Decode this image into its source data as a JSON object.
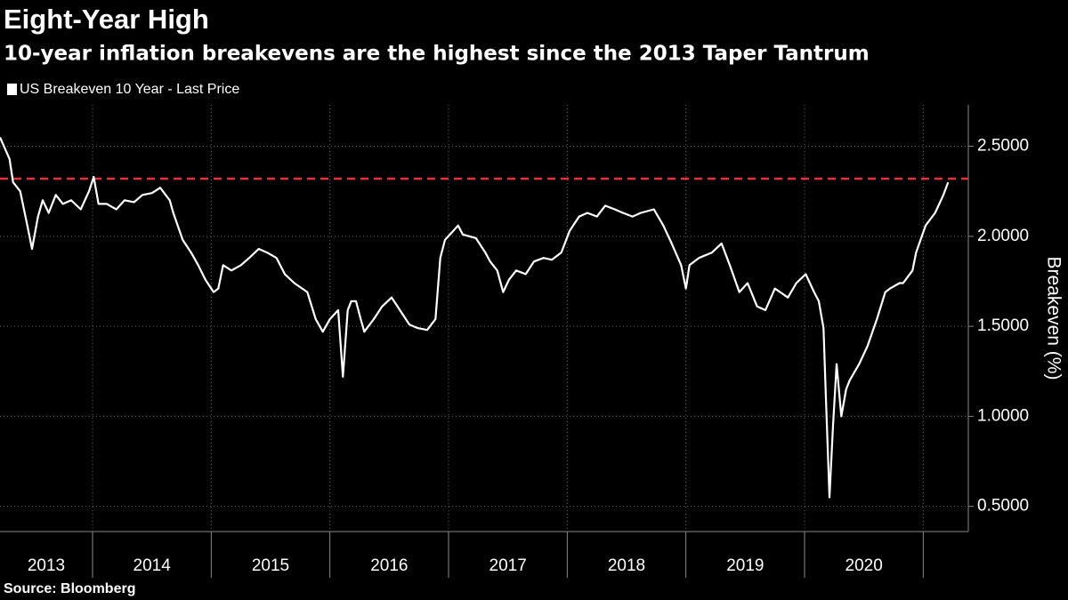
{
  "chart_data": {
    "type": "line",
    "title": "Eight-Year High",
    "subtitle": "10-year inflation breakevens are the highest since the 2013 Taper Tantrum",
    "y_label": "Breakeven (%)",
    "source": "Source: Bloomberg",
    "x_labels": [
      "2013",
      "2014",
      "2015",
      "2016",
      "2017",
      "2018",
      "2019",
      "2020"
    ],
    "xlim": [
      2013.22,
      2021.38
    ],
    "xticks": [
      2014,
      2015,
      2016,
      2017,
      2018,
      2019,
      2020,
      2021
    ],
    "ylim": [
      0.36,
      2.73
    ],
    "yticks": [
      {
        "value": 0.5,
        "label": "0.5000"
      },
      {
        "value": 1,
        "label": "1.0000"
      },
      {
        "value": 1.5,
        "label": "1.5000"
      },
      {
        "value": 2,
        "label": "2.0000"
      },
      {
        "value": 2.5,
        "label": "2.5000"
      }
    ],
    "grid": true,
    "reference_line": {
      "value": 2.32,
      "color": "#e8313f"
    },
    "x": [
      2013.22,
      2013.3,
      2013.33,
      2013.39,
      2013.45,
      2013.49,
      2013.54,
      2013.58,
      2013.63,
      2013.69,
      2013.75,
      2013.82,
      2013.9,
      2013.97,
      2014.01,
      2014.05,
      2014.12,
      2014.2,
      2014.27,
      2014.35,
      2014.42,
      2014.5,
      2014.57,
      2014.65,
      2014.68,
      2014.76,
      2014.83,
      2014.89,
      2014.95,
      2015.02,
      2015.06,
      2015.1,
      2015.17,
      2015.25,
      2015.32,
      2015.4,
      2015.47,
      2015.55,
      2015.62,
      2015.7,
      2015.81,
      2015.88,
      2015.94,
      2016.0,
      2016.07,
      2016.11,
      2016.15,
      2016.18,
      2016.22,
      2016.26,
      2016.29,
      2016.37,
      2016.44,
      2016.52,
      2016.59,
      2016.67,
      2016.74,
      2016.82,
      2016.89,
      2016.93,
      2016.97,
      2017.04,
      2017.08,
      2017.12,
      2017.23,
      2017.31,
      2017.35,
      2017.41,
      2017.46,
      2017.51,
      2017.57,
      2017.65,
      2017.72,
      2017.8,
      2017.87,
      2017.95,
      2018.02,
      2018.1,
      2018.17,
      2018.25,
      2018.32,
      2018.4,
      2018.47,
      2018.55,
      2018.62,
      2018.73,
      2018.81,
      2018.88,
      2018.96,
      2019.0,
      2019.03,
      2019.11,
      2019.22,
      2019.3,
      2019.37,
      2019.45,
      2019.52,
      2019.6,
      2019.67,
      2019.75,
      2019.86,
      2019.93,
      2020.01,
      2020.08,
      2020.12,
      2020.16,
      2020.18,
      2020.21,
      2020.24,
      2020.27,
      2020.31,
      2020.35,
      2020.38,
      2020.46,
      2020.53,
      2020.61,
      2020.68,
      2020.72,
      2020.8,
      2020.83,
      2020.91,
      2020.94,
      2021.02,
      2021.1,
      2021.17,
      2021.21
    ],
    "series": [
      {
        "name": "US Breakeven 10 Year - Last Price",
        "color": "#ffffff",
        "values": [
          2.55,
          2.43,
          2.3,
          2.25,
          2.06,
          1.93,
          2.11,
          2.2,
          2.13,
          2.23,
          2.18,
          2.2,
          2.15,
          2.25,
          2.33,
          2.18,
          2.18,
          2.15,
          2.2,
          2.19,
          2.23,
          2.24,
          2.27,
          2.2,
          2.13,
          1.98,
          1.91,
          1.84,
          1.76,
          1.69,
          1.71,
          1.84,
          1.81,
          1.84,
          1.88,
          1.93,
          1.91,
          1.88,
          1.79,
          1.74,
          1.69,
          1.54,
          1.47,
          1.54,
          1.59,
          1.22,
          1.59,
          1.64,
          1.64,
          1.54,
          1.47,
          1.54,
          1.61,
          1.66,
          1.59,
          1.51,
          1.49,
          1.48,
          1.54,
          1.88,
          1.98,
          2.03,
          2.06,
          2.01,
          1.99,
          1.91,
          1.86,
          1.81,
          1.69,
          1.76,
          1.81,
          1.79,
          1.86,
          1.88,
          1.87,
          1.91,
          2.03,
          2.11,
          2.13,
          2.11,
          2.17,
          2.15,
          2.13,
          2.11,
          2.13,
          2.15,
          2.06,
          1.96,
          1.84,
          1.71,
          1.84,
          1.88,
          1.91,
          1.96,
          1.84,
          1.69,
          1.74,
          1.61,
          1.59,
          1.71,
          1.66,
          1.74,
          1.79,
          1.69,
          1.64,
          1.49,
          1.1,
          0.55,
          0.95,
          1.29,
          1.0,
          1.15,
          1.2,
          1.29,
          1.39,
          1.54,
          1.69,
          1.71,
          1.74,
          1.74,
          1.81,
          1.91,
          2.06,
          2.13,
          2.23,
          2.3
        ]
      }
    ]
  }
}
